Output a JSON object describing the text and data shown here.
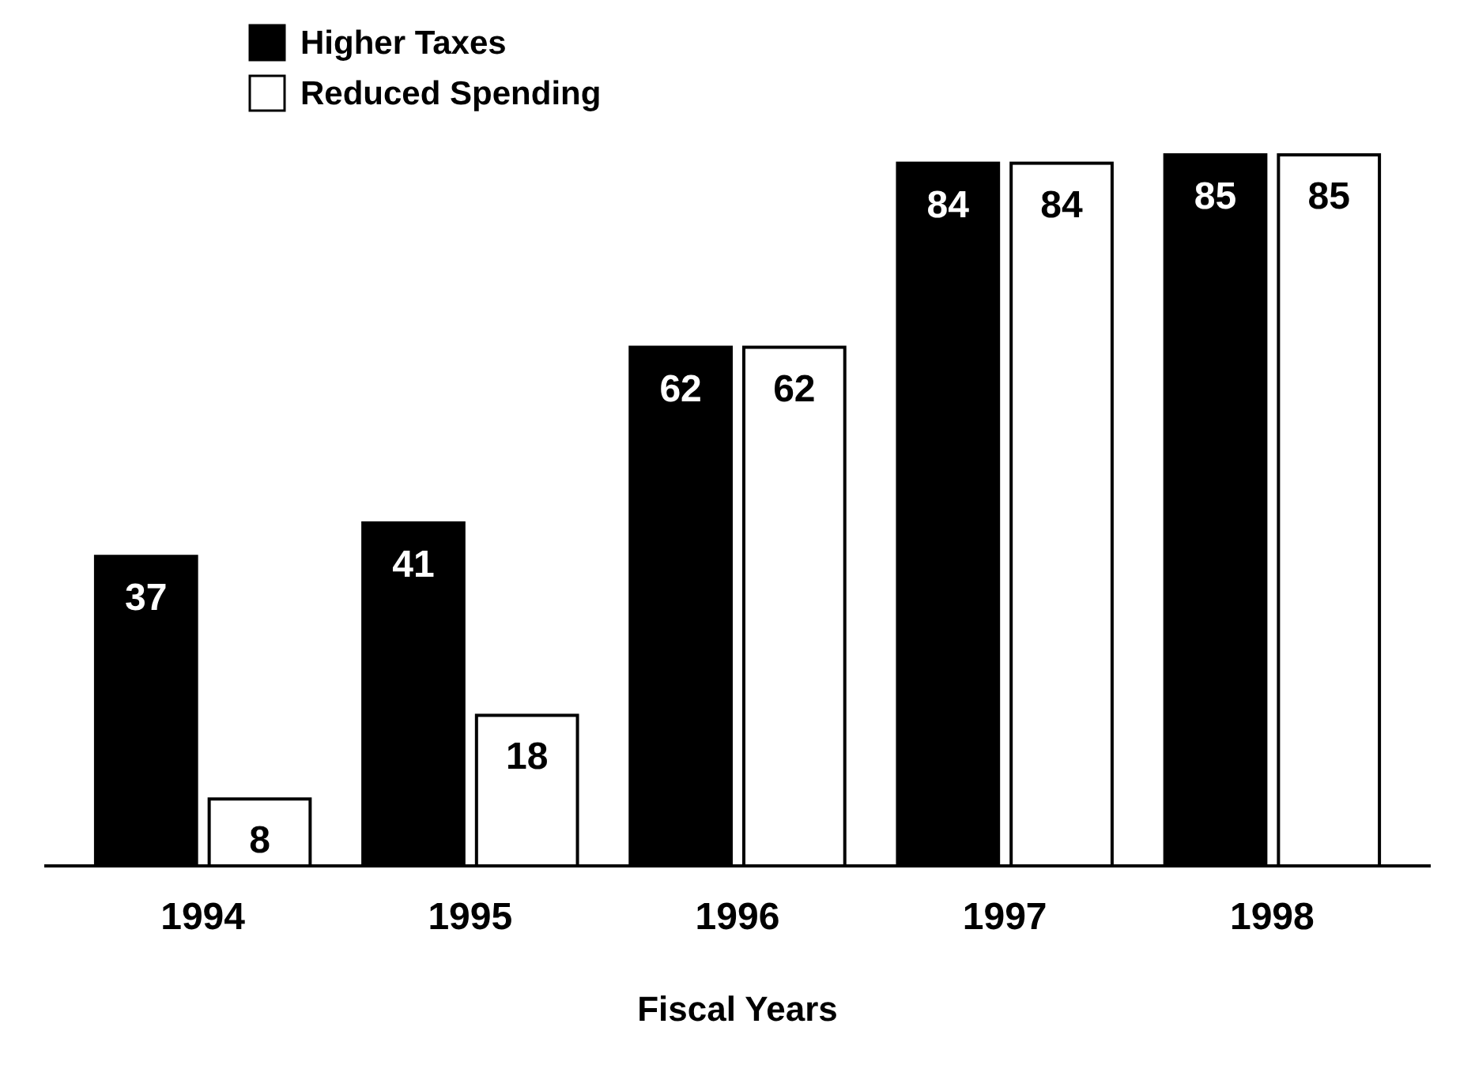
{
  "chart_data": {
    "type": "bar",
    "xlabel": "Fiscal Years",
    "categories": [
      "1994",
      "1995",
      "1996",
      "1997",
      "1998"
    ],
    "series": [
      {
        "name": "Higher Taxes",
        "color": "#000000",
        "values": [
          37,
          41,
          62,
          84,
          85
        ]
      },
      {
        "name": "Reduced Spending",
        "color": "#ffffff",
        "values": [
          8,
          18,
          62,
          84,
          85
        ]
      }
    ],
    "data_labels": true,
    "legend": "top left"
  }
}
